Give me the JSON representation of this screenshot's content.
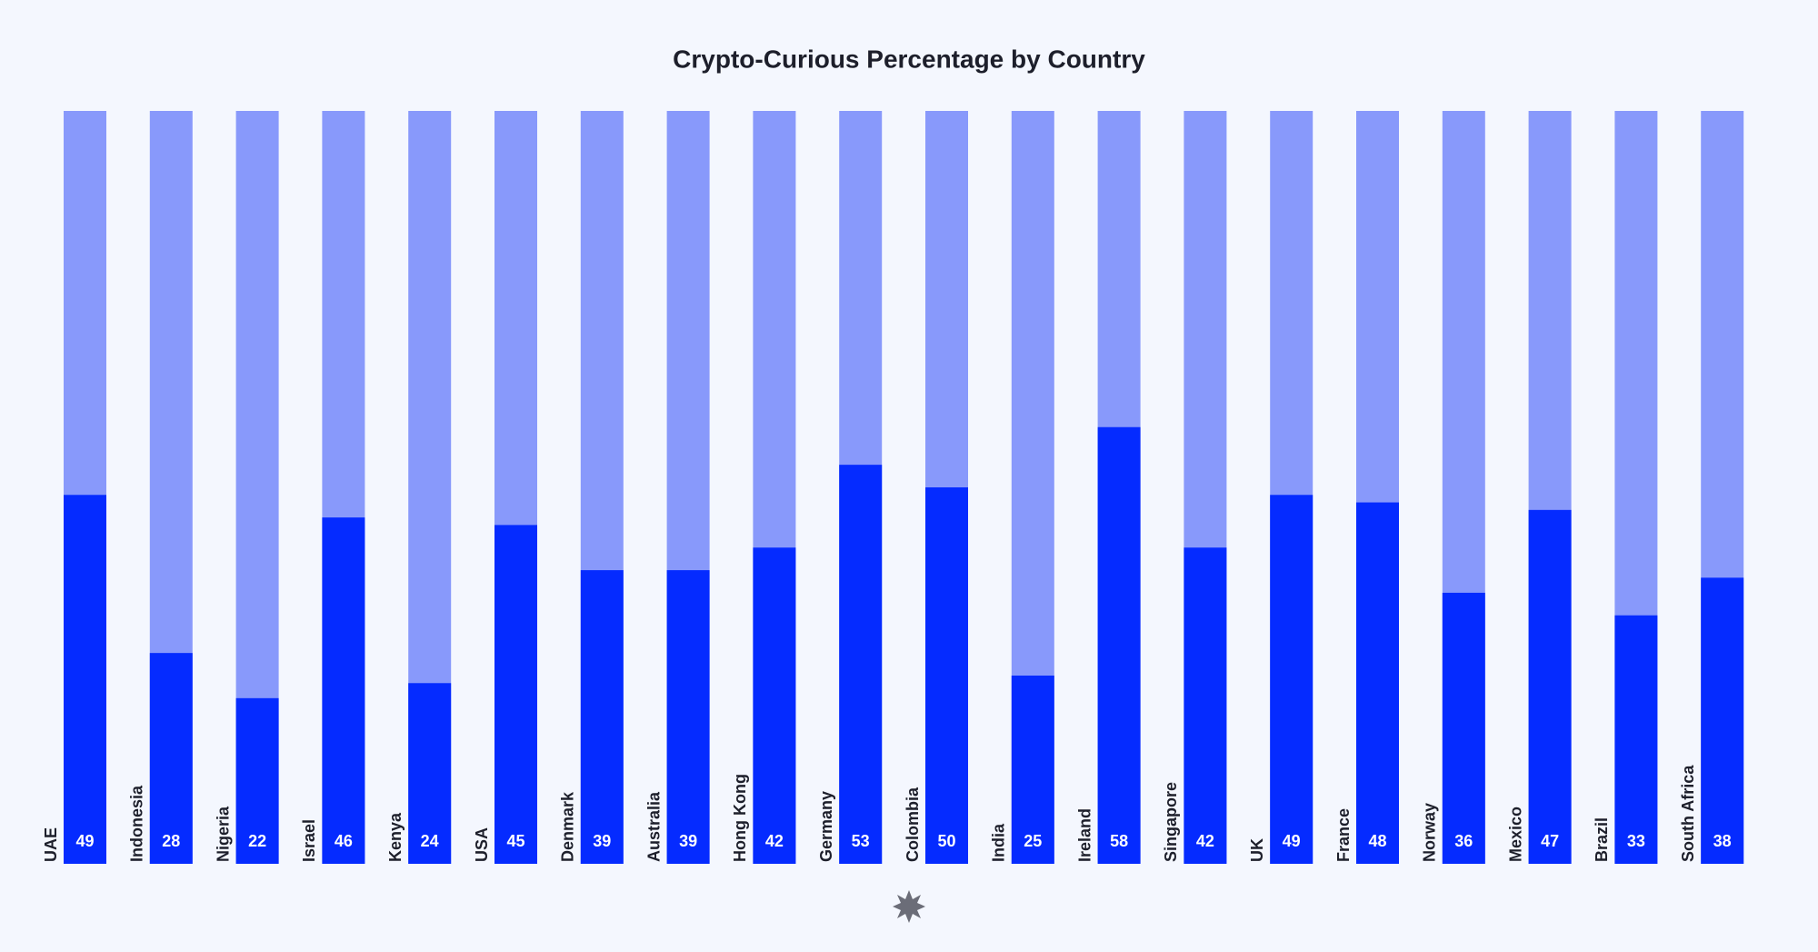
{
  "chart_data": {
    "type": "bar",
    "title": "Crypto-Curious Percentage by Country",
    "categories": [
      "UAE",
      "Indonesia",
      "Nigeria",
      "Israel",
      "Kenya",
      "USA",
      "Denmark",
      "Australia",
      "Hong Kong",
      "Germany",
      "Colombia",
      "India",
      "Ireland",
      "Singapore",
      "UK",
      "France",
      "Norway",
      "Mexico",
      "Brazil",
      "South Africa"
    ],
    "values": [
      49,
      28,
      22,
      46,
      24,
      45,
      39,
      39,
      42,
      53,
      50,
      25,
      58,
      42,
      49,
      48,
      36,
      47,
      33,
      38
    ],
    "color": "#052bff",
    "track_color": "#8899fb",
    "ylim": [
      0,
      100
    ]
  }
}
